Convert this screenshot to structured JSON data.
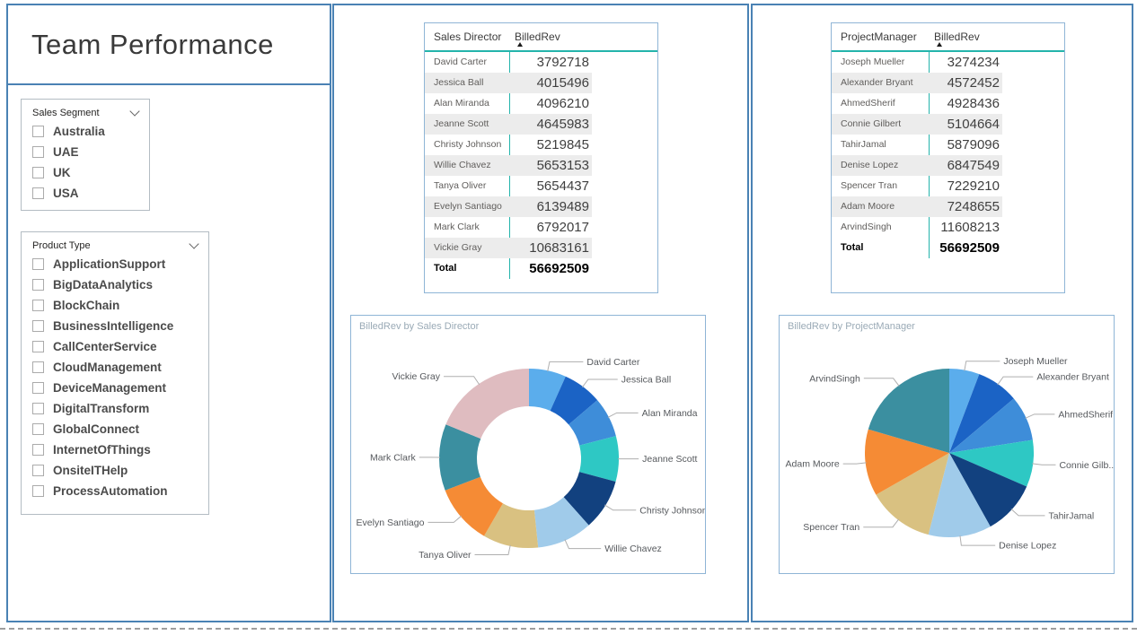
{
  "page": {
    "title": "Team Performance"
  },
  "slicers": [
    {
      "title": "Sales Segment",
      "icon": "chevron-down",
      "items": [
        "Australia",
        "UAE",
        "UK",
        "USA"
      ],
      "checked": [
        false,
        false,
        false,
        false
      ]
    },
    {
      "title": "Product Type",
      "icon": "chevron-down",
      "items": [
        "ApplicationSupport",
        "BigDataAnalytics",
        "BlockChain",
        "BusinessIntelligence",
        "CallCenterService",
        "CloudManagement",
        "DeviceManagement",
        "DigitalTransform",
        "GlobalConnect",
        "InternetOfThings",
        "OnsiteITHelp",
        "ProcessAutomation"
      ],
      "checked": [
        false,
        false,
        false,
        false,
        false,
        false,
        false,
        false,
        false,
        false,
        false,
        false
      ]
    }
  ],
  "tables": [
    {
      "columns": [
        "Sales Director",
        "BilledRev"
      ],
      "sort": "ascending",
      "rows": [
        [
          "David Carter",
          "3792718"
        ],
        [
          "Jessica Ball",
          "4015496"
        ],
        [
          "Alan Miranda",
          "4096210"
        ],
        [
          "Jeanne Scott",
          "4645983"
        ],
        [
          "Christy Johnson",
          "5219845"
        ],
        [
          "Willie Chavez",
          "5653153"
        ],
        [
          "Tanya Oliver",
          "5654437"
        ],
        [
          "Evelyn Santiago",
          "6139489"
        ],
        [
          "Mark Clark",
          "6792017"
        ],
        [
          "Vickie Gray",
          "10683161"
        ]
      ],
      "total": [
        "Total",
        "56692509"
      ]
    },
    {
      "columns": [
        "ProjectManager",
        "BilledRev"
      ],
      "sort": "ascending",
      "rows": [
        [
          "Joseph Mueller",
          "3274234"
        ],
        [
          "Alexander Bryant",
          "4572452"
        ],
        [
          "AhmedSherif",
          "4928436"
        ],
        [
          "Connie Gilbert",
          "5104664"
        ],
        [
          "TahirJamal",
          "5879096"
        ],
        [
          "Denise Lopez",
          "6847549"
        ],
        [
          "Spencer Tran",
          "7229210"
        ],
        [
          "Adam Moore",
          "7248655"
        ],
        [
          "ArvindSingh",
          "11608213"
        ]
      ],
      "total": [
        "Total",
        "56692509"
      ]
    }
  ],
  "chart_data": [
    {
      "type": "pie",
      "subtype": "donut",
      "title": "BilledRev by Sales Director",
      "categories": [
        "David Carter",
        "Jessica Ball",
        "Alan Miranda",
        "Jeanne Scott",
        "Christy Johnson",
        "Willie Chavez",
        "Tanya Oliver",
        "Evelyn Santiago",
        "Mark Clark",
        "Vickie Gray"
      ],
      "values": [
        3792718,
        4015496,
        4096210,
        4645983,
        5219845,
        5653153,
        5654437,
        6139489,
        6792017,
        10683161
      ],
      "labels": [
        "David Carter",
        "Jessica Ball",
        "Alan Miranda",
        "Jeanne Scott",
        "Christy Johnson",
        "Willie Chavez",
        "Tanya Oliver",
        "Evelyn Santiago",
        "Mark Clark",
        "Vickie Gray"
      ],
      "colors": [
        "#5BADEC",
        "#1B63C5",
        "#3E8DD9",
        "#2EC8C4",
        "#12417F",
        "#A0CBEA",
        "#D9C181",
        "#F58B35",
        "#3B8FA0",
        "#DFBCC0"
      ],
      "total": 56692509,
      "start_angle_deg": 0,
      "direction": "clockwise",
      "legend": "off",
      "label_style": "category-with-leader-line"
    },
    {
      "type": "pie",
      "subtype": "pie",
      "title": "BilledRev by ProjectManager",
      "categories": [
        "Joseph Mueller",
        "Alexander Bryant",
        "AhmedSherif",
        "Connie Gilbert",
        "TahirJamal",
        "Denise Lopez",
        "Spencer Tran",
        "Adam Moore",
        "ArvindSingh"
      ],
      "values": [
        3274234,
        4572452,
        4928436,
        5104664,
        5879096,
        6847549,
        7229210,
        7248655,
        11608213
      ],
      "labels": [
        "Joseph Mueller",
        "Alexander Bryant",
        "AhmedSherif",
        "Connie Gilb...",
        "TahirJamal",
        "Denise Lopez",
        "Spencer Tran",
        "Adam Moore",
        "ArvindSingh"
      ],
      "colors": [
        "#5BADEC",
        "#1B63C5",
        "#3E8DD9",
        "#2EC8C4",
        "#12417F",
        "#A0CBEA",
        "#D9C181",
        "#F58B35",
        "#3B8FA0"
      ],
      "total": 56692509,
      "start_angle_deg": 0,
      "direction": "clockwise",
      "legend": "off",
      "label_style": "category-with-leader-line"
    }
  ],
  "colors": {
    "panel_border": "#4A82B4",
    "card_border": "#8FB5D6",
    "table_accent": "#24B4AB",
    "row_stripe": "#ECECEC",
    "chart_title": "#9AAAB6",
    "title_text": "#3A3A3A"
  }
}
